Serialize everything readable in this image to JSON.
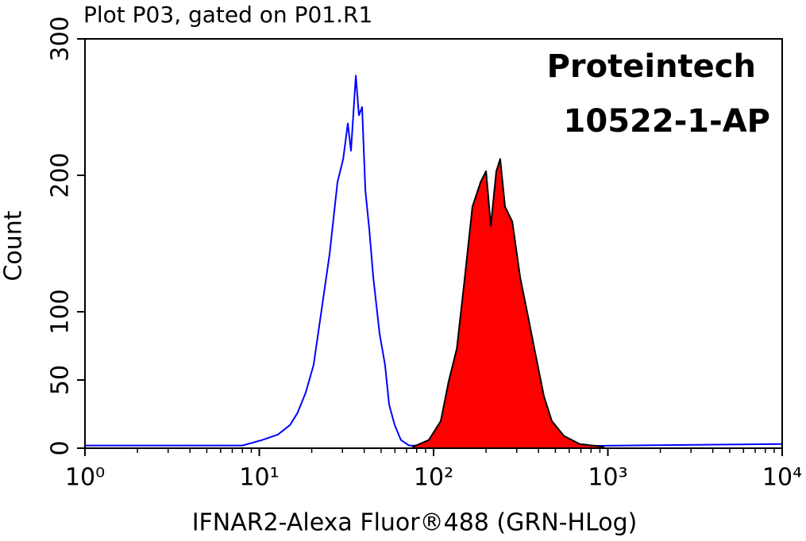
{
  "chart_data": {
    "type": "histogram-overlay",
    "title": "Plot P03, gated on P01.R1",
    "annotations": [
      "Proteintech",
      "10522-1-AP"
    ],
    "x_label": "IFNAR2-Alexa Fluor®488 (GRN-HLog)",
    "y_label": "Count",
    "xscale": "log",
    "xlim": [
      1,
      10000
    ],
    "xticks": [
      {
        "value": 1,
        "label": "10⁰"
      },
      {
        "value": 10,
        "label": "10¹"
      },
      {
        "value": 100,
        "label": "10²"
      },
      {
        "value": 1000,
        "label": "10³"
      },
      {
        "value": 10000,
        "label": "10⁴"
      }
    ],
    "ylim": [
      0,
      300
    ],
    "yticks": [
      0,
      50,
      100,
      200,
      300
    ],
    "series": [
      {
        "color": "#0000ff",
        "x": [
          1,
          8,
          10.4,
          12.8,
          15.0,
          16.6,
          18.5,
          20.5,
          22.8,
          25.3,
          28.1,
          30.3,
          32.2,
          33.6,
          35.8,
          37.3,
          38.9,
          40.6,
          42.8,
          45.1,
          49.0,
          52.7,
          55.6,
          59.8,
          65.0,
          72.3,
          176,
          10000
        ],
        "values": [
          2,
          2,
          6,
          10,
          17,
          26,
          41,
          61,
          102,
          142,
          195,
          212,
          238,
          218,
          273,
          244,
          250,
          189,
          160,
          125,
          84,
          61,
          32,
          17,
          6,
          2,
          1,
          3
        ]
      },
      {
        "color": "#000000",
        "fill": "#ff0000",
        "x": [
          76.2,
          93.9,
          110,
          122,
          136,
          151,
          167,
          186,
          200,
          213,
          229,
          241,
          257,
          283,
          314,
          349,
          387,
          430,
          477,
          559,
          689,
          944
        ],
        "values": [
          1,
          6,
          20,
          49,
          73,
          125,
          177,
          195,
          203,
          163,
          203,
          212,
          177,
          166,
          125,
          96,
          67,
          38,
          20,
          9,
          3,
          1
        ]
      }
    ]
  }
}
